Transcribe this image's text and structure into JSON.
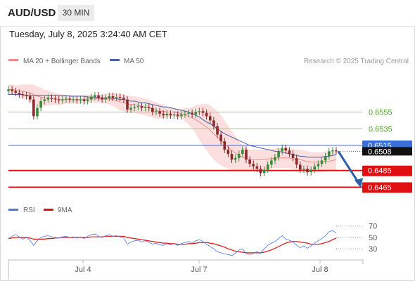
{
  "header": {
    "symbol": "AUD/USD",
    "timeframe": "30 MIN"
  },
  "datetime": "Tuesday, July 8, 2025 3:24:40 AM CET",
  "credit": "Research © 2025 Trading Central",
  "colors": {
    "ma20": "#f08c8c",
    "bollinger_fill": "#fbdede",
    "ma50": "#4a5fa8",
    "candle_up": "#3a8a3a",
    "candle_down": "#8a2a2a",
    "resistance_line": "#9ccc7a",
    "resistance_label": "#4e9a2e",
    "pivot_line": "#3a6fd8",
    "support_line": "#e01010",
    "arrow": "#2d5ea8",
    "rsi_line": "#4a78e0",
    "rsi_ma_line": "#e01010",
    "current_badge": "#111111"
  },
  "chart_data": [
    {
      "type": "line",
      "name": "price",
      "legend": [
        {
          "label": "MA 20 + Bollinger Bands"
        },
        {
          "label": "MA 50"
        }
      ],
      "x_ticks": [
        "Jul 4",
        "Jul 7",
        "Jul 8"
      ],
      "y_range": [
        0.6452,
        0.6605
      ],
      "levels": [
        {
          "value": "0.6555",
          "kind": "resistance"
        },
        {
          "value": "0.6535",
          "kind": "resistance"
        },
        {
          "value": "0.6515",
          "kind": "pivot"
        },
        {
          "value": "0.6485",
          "kind": "support"
        },
        {
          "value": "0.6465",
          "kind": "support"
        }
      ],
      "current_price": "0.6508",
      "projection": {
        "from": 0.6508,
        "to": 0.6465
      },
      "closes": [
        0.6582,
        0.658,
        0.6578,
        0.6576,
        0.6575,
        0.6574,
        0.657,
        0.655,
        0.656,
        0.6568,
        0.657,
        0.6572,
        0.6571,
        0.657,
        0.6569,
        0.657,
        0.6571,
        0.657,
        0.657,
        0.6569,
        0.657,
        0.6568,
        0.657,
        0.6573,
        0.6575,
        0.6572,
        0.657,
        0.6572,
        0.6574,
        0.6572,
        0.6573,
        0.6572,
        0.657,
        0.6558,
        0.656,
        0.6561,
        0.6562,
        0.656,
        0.6561,
        0.656,
        0.6555,
        0.6556,
        0.6553,
        0.6551,
        0.6553,
        0.6551,
        0.6552,
        0.655,
        0.6552,
        0.6553,
        0.6554,
        0.6552,
        0.6555,
        0.6556,
        0.6554,
        0.655,
        0.6545,
        0.6538,
        0.6528,
        0.652,
        0.651,
        0.6505,
        0.6498,
        0.65,
        0.6505,
        0.651,
        0.6498,
        0.6493,
        0.649,
        0.6487,
        0.6482,
        0.6486,
        0.6492,
        0.6497,
        0.6501,
        0.6508,
        0.6512,
        0.6509,
        0.6505,
        0.65,
        0.6492,
        0.6486,
        0.6487,
        0.6483,
        0.6486,
        0.649,
        0.6493,
        0.6497,
        0.6502,
        0.6508,
        0.6509,
        0.6508
      ],
      "ma20": [
        0.6582,
        0.6582,
        0.6581,
        0.658,
        0.658,
        0.6579,
        0.6578,
        0.6576,
        0.6574,
        0.6573,
        0.6572,
        0.6572,
        0.6571,
        0.6571,
        0.657,
        0.657,
        0.657,
        0.657,
        0.657,
        0.657,
        0.657,
        0.657,
        0.6571,
        0.6571,
        0.6571,
        0.6571,
        0.6571,
        0.6571,
        0.6571,
        0.657,
        0.6569,
        0.6567,
        0.6566,
        0.6565,
        0.6564,
        0.6564,
        0.6563,
        0.6562,
        0.6561,
        0.656,
        0.6558,
        0.6557,
        0.6556,
        0.6556,
        0.6555,
        0.6555,
        0.6555,
        0.6554,
        0.6553,
        0.6552,
        0.655,
        0.6548,
        0.6546,
        0.6543,
        0.654,
        0.6537,
        0.6533,
        0.6529,
        0.6525,
        0.6521,
        0.6517,
        0.6513,
        0.6509,
        0.6506,
        0.6503,
        0.6501,
        0.6499,
        0.6498,
        0.6498,
        0.6498,
        0.6498,
        0.6498,
        0.6499,
        0.6499,
        0.65,
        0.65,
        0.65,
        0.65,
        0.65,
        0.6499,
        0.6498,
        0.6498,
        0.6497,
        0.6496,
        0.6495,
        0.6495,
        0.6495,
        0.6495,
        0.6496,
        0.6496,
        0.6497,
        0.6498
      ],
      "ma50": [
        0.6576,
        0.6576,
        0.6576,
        0.6576,
        0.6576,
        0.6575,
        0.6575,
        0.6575,
        0.6575,
        0.6575,
        0.6575,
        0.6575,
        0.6575,
        0.6575,
        0.6575,
        0.6575,
        0.6575,
        0.6574,
        0.6574,
        0.6574,
        0.6574,
        0.6574,
        0.6573,
        0.6573,
        0.6573,
        0.6572,
        0.6572,
        0.6572,
        0.6572,
        0.6571,
        0.6571,
        0.657,
        0.657,
        0.6569,
        0.6568,
        0.6568,
        0.6567,
        0.6566,
        0.6566,
        0.6565,
        0.6564,
        0.6563,
        0.6562,
        0.6561,
        0.6561,
        0.656,
        0.6559,
        0.6558,
        0.6557,
        0.6556,
        0.6555,
        0.6553,
        0.6551,
        0.6549,
        0.6546,
        0.6543,
        0.6541,
        0.6538,
        0.6535,
        0.6532,
        0.6529,
        0.6527,
        0.6525,
        0.6523,
        0.6521,
        0.6519,
        0.6517,
        0.6515,
        0.6514,
        0.6513,
        0.6512,
        0.6511,
        0.651,
        0.6509,
        0.6508,
        0.6508,
        0.6507,
        0.6506,
        0.6505,
        0.6504,
        0.6503,
        0.6502,
        0.6502,
        0.6501,
        0.6501,
        0.6501,
        0.6501,
        0.6501,
        0.6502,
        0.6502,
        0.6503,
        0.6504
      ],
      "band_width": [
        0.0006,
        0.0006,
        0.0006,
        0.0007,
        0.0008,
        0.0009,
        0.001,
        0.0012,
        0.0012,
        0.0011,
        0.001,
        0.0009,
        0.0008,
        0.0007,
        0.0007,
        0.0006,
        0.0005,
        0.0005,
        0.0005,
        0.0005,
        0.0005,
        0.0005,
        0.0005,
        0.0005,
        0.0005,
        0.0005,
        0.0005,
        0.0006,
        0.0007,
        0.0008,
        0.0009,
        0.001,
        0.001,
        0.001,
        0.001,
        0.001,
        0.001,
        0.001,
        0.001,
        0.001,
        0.001,
        0.001,
        0.0009,
        0.0008,
        0.0007,
        0.0006,
        0.0005,
        0.0005,
        0.0006,
        0.0008,
        0.001,
        0.0013,
        0.0017,
        0.0021,
        0.0025,
        0.0028,
        0.003,
        0.0031,
        0.0031,
        0.003,
        0.0028,
        0.0026,
        0.0023,
        0.002,
        0.0017,
        0.0015,
        0.0013,
        0.0012,
        0.0012,
        0.0012,
        0.0012,
        0.0012,
        0.0012,
        0.0012,
        0.0012,
        0.0012,
        0.0012,
        0.0012,
        0.0012,
        0.0012,
        0.0012,
        0.0012,
        0.0012,
        0.0012,
        0.0012,
        0.0012,
        0.0012,
        0.0012,
        0.0012,
        0.0012,
        0.0012,
        0.0012
      ]
    },
    {
      "type": "line",
      "name": "rsi",
      "legend": [
        {
          "label": "RSI"
        },
        {
          "label": "9MA"
        }
      ],
      "y_ticks": [
        "70",
        "50",
        "30"
      ],
      "y_range": [
        13,
        82
      ],
      "rsi": [
        48,
        52,
        55,
        51,
        47,
        50,
        45,
        36,
        44,
        50,
        52,
        53,
        51,
        50,
        49,
        51,
        52,
        50,
        51,
        49,
        51,
        48,
        52,
        55,
        56,
        52,
        50,
        53,
        55,
        52,
        53,
        51,
        49,
        38,
        42,
        44,
        45,
        42,
        44,
        42,
        38,
        40,
        37,
        36,
        39,
        37,
        39,
        36,
        39,
        41,
        43,
        40,
        44,
        46,
        43,
        38,
        34,
        30,
        25,
        23,
        21,
        20,
        18,
        22,
        28,
        30,
        22,
        20,
        22,
        25,
        22,
        30,
        36,
        40,
        43,
        48,
        53,
        47,
        45,
        42,
        36,
        32,
        35,
        31,
        35,
        40,
        44,
        48,
        53,
        60,
        62,
        58
      ],
      "rsi_ma": [
        48,
        49,
        50,
        50,
        50,
        50,
        49,
        47,
        47,
        47,
        47,
        48,
        48,
        49,
        49,
        50,
        50,
        50,
        50,
        50,
        50,
        50,
        50,
        51,
        51,
        51,
        51,
        52,
        52,
        52,
        52,
        52,
        52,
        50,
        49,
        48,
        47,
        46,
        45,
        44,
        43,
        42,
        41,
        40,
        40,
        39,
        39,
        38,
        38,
        38,
        39,
        39,
        40,
        41,
        41,
        41,
        40,
        39,
        37,
        35,
        33,
        30,
        28,
        26,
        25,
        24,
        23,
        23,
        23,
        23,
        23,
        24,
        26,
        28,
        31,
        34,
        37,
        40,
        42,
        43,
        43,
        42,
        41,
        40,
        38,
        38,
        38,
        39,
        41,
        43,
        46,
        49
      ]
    }
  ]
}
